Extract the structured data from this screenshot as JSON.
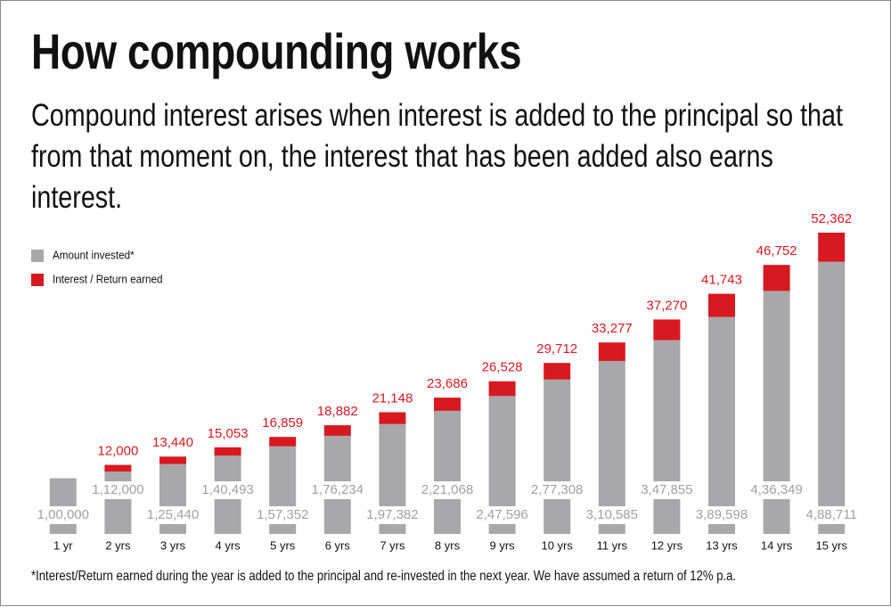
{
  "chart_data": {
    "type": "stacked-bar",
    "title": "How compounding works",
    "subtitle": "Compound interest arises when interest is added to the principal so that from that moment on, the interest that has been added also earns interest.",
    "footnote": "*Interest/Return earned during the year is added to the principal and re-invested in the next year. We have assumed a return of 12% p.a.",
    "categories": [
      "1 yr",
      "2 yrs",
      "3 yrs",
      "4 yrs",
      "5 yrs",
      "6 yrs",
      "7 yrs",
      "8 yrs",
      "9 yrs",
      "10 yrs",
      "11 yrs",
      "12 yrs",
      "13 yrs",
      "14 yrs",
      "15 yrs"
    ],
    "series": [
      {
        "name": "Amount invested*",
        "color": "#a8a8ab",
        "values": [
          100000,
          112000,
          125440,
          140493,
          157352,
          176234,
          197382,
          221068,
          247596,
          277308,
          310585,
          347855,
          389598,
          436349,
          488711
        ],
        "value_labels": [
          "1,00,000",
          "1,12,000",
          "1,25,440",
          "1,40,493",
          "1,57,352",
          "1,76,234",
          "1,97,382",
          "2,21,068",
          "2,47,596",
          "2,77,308",
          "3,10,585",
          "3,47,855",
          "3,89,598",
          "4,36,349",
          "4,88,711"
        ]
      },
      {
        "name": "Interest / Return earned",
        "color": "#d71920",
        "values": [
          null,
          12000,
          13440,
          15053,
          16859,
          18882,
          21148,
          23686,
          26528,
          29712,
          33277,
          37270,
          41743,
          46752,
          52362
        ],
        "value_labels": [
          null,
          "12,000",
          "13,440",
          "15,053",
          "16,859",
          "18,882",
          "21,148",
          "23,686",
          "26,528",
          "29,712",
          "33,277",
          "37,270",
          "41,743",
          "46,752",
          "52,362"
        ]
      }
    ],
    "legend": "upper left"
  }
}
